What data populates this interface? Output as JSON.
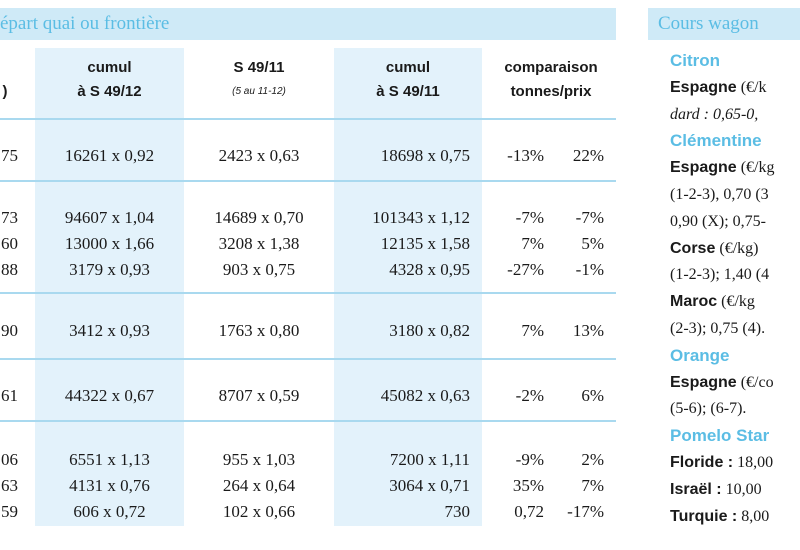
{
  "left_header": "épart quai ou frontière",
  "columns": {
    "col0": ")",
    "col1_l1": "cumul",
    "col1_l2": "à S 49/12",
    "col2_l1": "S 49/11",
    "col2_l2": "(5 au 11-12)",
    "col3_l1": "cumul",
    "col3_l2": "à S 49/11",
    "col4_l1": "comparaison",
    "col4_l2": "tonnes/prix"
  },
  "rows": [
    {
      "c0": "75",
      "c1": "16261 x 0,92",
      "c2": "2423 x 0,63",
      "c3": "18698 x 0,75",
      "t": "-13%",
      "p": "22%"
    },
    {
      "c0": "73",
      "c1": "94607 x 1,04",
      "c2": "14689 x 0,70",
      "c3": "101343 x 1,12",
      "t": "-7%",
      "p": "-7%"
    },
    {
      "c0": "60",
      "c1": "13000 x 1,66",
      "c2": "3208 x 1,38",
      "c3": "12135 x 1,58",
      "t": "7%",
      "p": "5%"
    },
    {
      "c0": "88",
      "c1": "3179 x 0,93",
      "c2": "903 x 0,75",
      "c3": "4328 x 0,95",
      "t": "-27%",
      "p": "-1%"
    },
    {
      "c0": "90",
      "c1": "3412 x 0,93",
      "c2": "1763 x 0,80",
      "c3": "3180 x 0,82",
      "t": "7%",
      "p": "13%"
    },
    {
      "c0": "61",
      "c1": "44322 x 0,67",
      "c2": "8707 x 0,59",
      "c3": "45082 x 0,63",
      "t": "-2%",
      "p": "6%"
    },
    {
      "c0": "06",
      "c1": "6551 x 1,13",
      "c2": "955 x 1,03",
      "c3": "7200 x 1,11",
      "t": "-9%",
      "p": "2%"
    },
    {
      "c0": "63",
      "c1": "4131 x 0,76",
      "c2": "264 x 0,64",
      "c3": "3064 x 0,71",
      "t": "35%",
      "p": "7%"
    },
    {
      "c0": "59",
      "c1": "606 x 0,72",
      "c2": "102 x 0,66",
      "c3": "730",
      "t": "0,72",
      "p": "-17%"
    }
  ],
  "right": {
    "header": "Cours wagon",
    "lines": [
      {
        "kind": "fruit",
        "text": "Citron"
      },
      {
        "kind": "text",
        "bold": "Espagne",
        "rest": " (€/k"
      },
      {
        "kind": "italic",
        "text": "dard : 0,65-0,"
      },
      {
        "kind": "fruit",
        "text": "Clémentine"
      },
      {
        "kind": "text",
        "bold": "Espagne",
        "rest": " (€/kg"
      },
      {
        "kind": "plain",
        "text": "(1-2-3), 0,70 (3"
      },
      {
        "kind": "plain",
        "text": "0,90 (X); 0,75-"
      },
      {
        "kind": "text",
        "bold": "Corse",
        "rest": " (€/kg)"
      },
      {
        "kind": "plain",
        "text": "(1-2-3); 1,40 (4"
      },
      {
        "kind": "text",
        "bold": "Maroc",
        "rest": " (€/kg"
      },
      {
        "kind": "plain",
        "text": "(2-3); 0,75 (4)."
      },
      {
        "kind": "fruit",
        "text": "Orange"
      },
      {
        "kind": "text",
        "bold": "Espagne",
        "rest": " (€/co"
      },
      {
        "kind": "plain",
        "text": "(5-6); (6-7)."
      },
      {
        "kind": "fruit",
        "text": "Pomelo Star"
      },
      {
        "kind": "text",
        "bold": "Floride :",
        "rest": " 18,00"
      },
      {
        "kind": "text",
        "bold": "Israël :",
        "rest": " 10,00"
      },
      {
        "kind": "text",
        "bold": "Turquie :",
        "rest": " 8,00"
      }
    ]
  }
}
